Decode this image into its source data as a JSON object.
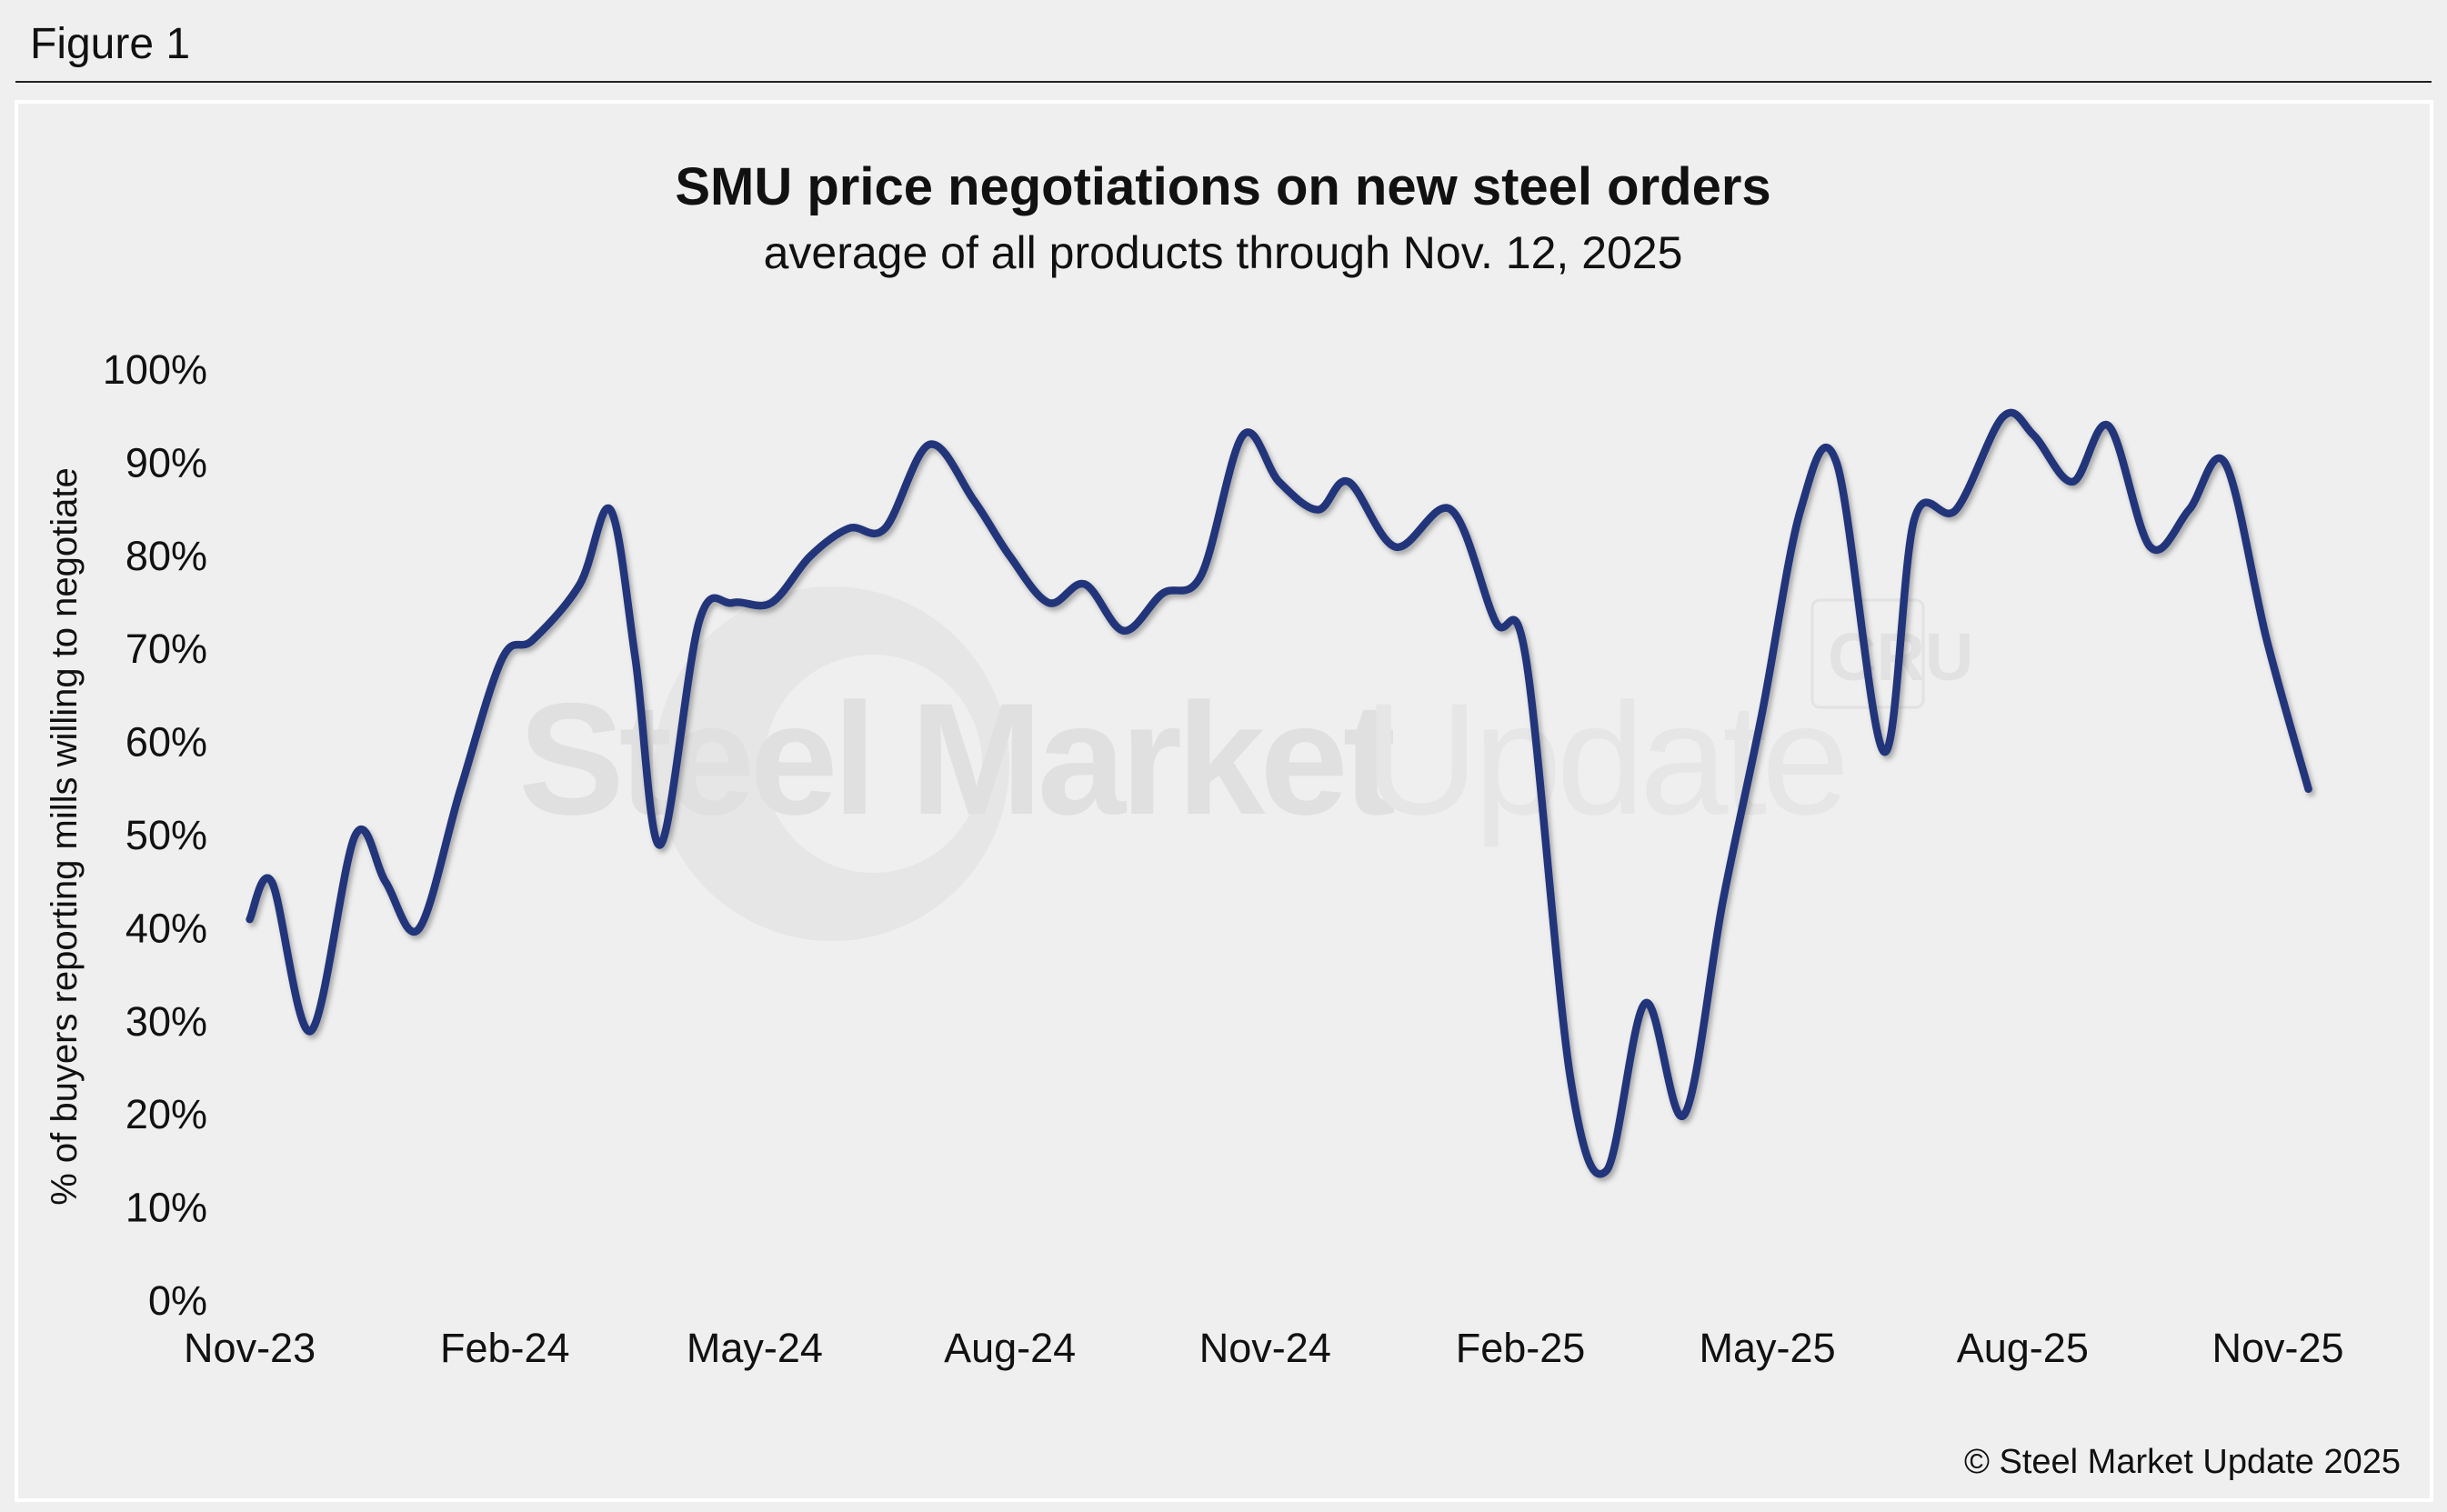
{
  "figure_label": "Figure 1",
  "copyright": "© Steel Market Update 2025",
  "watermark": {
    "text_bold": "Steel Market",
    "text_light": "Update",
    "badge": "CRU"
  },
  "colors": {
    "line": "#21357a",
    "background": "#efefef",
    "panel_border": "#ffffff",
    "watermark": "#e2e2e2"
  },
  "chart_data": {
    "type": "line",
    "title": "SMU price negotiations on new steel orders",
    "subtitle": "average of all products through Nov. 12, 2025",
    "xlabel": "",
    "ylabel": "% of buyers reporting mills willing to negotiate",
    "ylim": [
      0,
      100
    ],
    "y_ticks": [
      "0%",
      "10%",
      "20%",
      "30%",
      "40%",
      "50%",
      "60%",
      "70%",
      "80%",
      "90%",
      "100%"
    ],
    "x_ticks": [
      {
        "date": "2023-11-01",
        "label": "Nov-23"
      },
      {
        "date": "2024-02-01",
        "label": "Feb-24"
      },
      {
        "date": "2024-05-01",
        "label": "May-24"
      },
      {
        "date": "2024-08-01",
        "label": "Aug-24"
      },
      {
        "date": "2024-11-01",
        "label": "Nov-24"
      },
      {
        "date": "2025-02-01",
        "label": "Feb-25"
      },
      {
        "date": "2025-05-01",
        "label": "May-25"
      },
      {
        "date": "2025-08-01",
        "label": "Aug-25"
      },
      {
        "date": "2025-11-01",
        "label": "Nov-25"
      }
    ],
    "grid": false,
    "legend": "none",
    "x": [
      "2023-11-01",
      "2023-11-09",
      "2023-11-23",
      "2023-12-09",
      "2023-12-20",
      "2024-01-01",
      "2024-01-16",
      "2024-01-31",
      "2024-02-11",
      "2024-02-28",
      "2024-03-10",
      "2024-03-19",
      "2024-03-28",
      "2024-04-11",
      "2024-04-23",
      "2024-05-07",
      "2024-05-21",
      "2024-06-04",
      "2024-06-17",
      "2024-07-03",
      "2024-07-19",
      "2024-08-01",
      "2024-08-15",
      "2024-08-28",
      "2024-09-11",
      "2024-09-25",
      "2024-10-09",
      "2024-10-24",
      "2024-11-06",
      "2024-11-20",
      "2024-12-01",
      "2024-12-18",
      "2025-01-07",
      "2025-01-23",
      "2025-02-03",
      "2025-02-19",
      "2025-03-04",
      "2025-03-18",
      "2025-04-01",
      "2025-04-15",
      "2025-04-29",
      "2025-05-13",
      "2025-05-26",
      "2025-06-12",
      "2025-06-23",
      "2025-07-08",
      "2025-07-25",
      "2025-08-05",
      "2025-08-19",
      "2025-09-01",
      "2025-09-16",
      "2025-09-30",
      "2025-10-13",
      "2025-10-28",
      "2025-11-12"
    ],
    "values": [
      41,
      45,
      29,
      50,
      45,
      40,
      55,
      69,
      71,
      77,
      85,
      69,
      49,
      73,
      75,
      75,
      80,
      83,
      83,
      92,
      86,
      80,
      75,
      77,
      72,
      76,
      78,
      93,
      88,
      85,
      88,
      81,
      85,
      73,
      69,
      24,
      14,
      32,
      20,
      43,
      63,
      85,
      90,
      59,
      84,
      85,
      95,
      93,
      88,
      94,
      81,
      85,
      90,
      71,
      55
    ]
  }
}
